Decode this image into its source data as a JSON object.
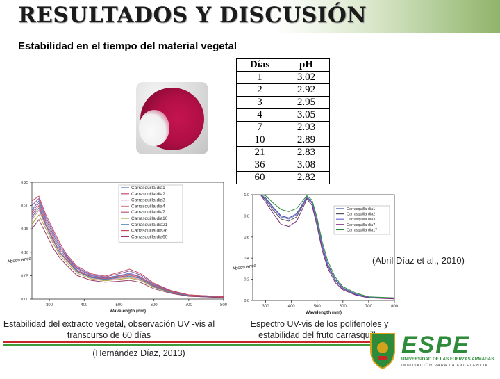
{
  "slide": {
    "title": "RESULTADOS Y DISCUSIÓN",
    "subtitle": "Estabilidad en el tiempo del material vegetal"
  },
  "table": {
    "headers": [
      "Días",
      "pH"
    ],
    "rows": [
      [
        "1",
        "3.02"
      ],
      [
        "2",
        "2.92"
      ],
      [
        "3",
        "2.95"
      ],
      [
        "4",
        "3.05"
      ],
      [
        "7",
        "2.93"
      ],
      [
        "10",
        "2.89"
      ],
      [
        "21",
        "2.83"
      ],
      [
        "36",
        "3.08"
      ],
      [
        "60",
        "2.82"
      ]
    ]
  },
  "captions": {
    "left": "Estabilidad del extracto vegetal, observación UV -vis al transcurso de 60 días",
    "left_citation": "(Hernández Díaz, 2013)",
    "right": "Espectro UV-vis de los polifenoles y estabilidad del fruto carrasquilla",
    "right_citation": "(Abril Díaz et al., 2010)"
  },
  "logo": {
    "brand": "ESPE",
    "line1": "UNIVERSIDAD DE LAS FUERZAS ARMADAS",
    "line2": "INNOVACIÓN PARA LA EXCELENCIA",
    "colors": {
      "green": "#2e8b3a",
      "gold": "#d7a21b"
    }
  },
  "chart_data": [
    {
      "type": "line",
      "x_range": [
        250,
        800
      ],
      "y_range": [
        0,
        0.25
      ],
      "xlabel": "Wavelength (nm)",
      "ylabel": "Absorbance",
      "x_ticks": [
        "300",
        "400",
        "500",
        "600",
        "700",
        "800"
      ],
      "y_ticks": [
        "0,00",
        "0,05",
        "0,10",
        "0,15",
        "0,20",
        "0,25"
      ],
      "legend_position": "top-right",
      "series": [
        {
          "name": "Carrasquilla dia1",
          "color": "#5b6abf",
          "x": [
            250,
            270,
            290,
            310,
            330,
            350,
            380,
            420,
            460,
            500,
            530,
            560,
            600,
            650,
            700,
            800
          ],
          "y": [
            0.19,
            0.21,
            0.17,
            0.14,
            0.11,
            0.09,
            0.065,
            0.05,
            0.045,
            0.05,
            0.055,
            0.048,
            0.03,
            0.016,
            0.008,
            0.004
          ]
        },
        {
          "name": "Carrasquilla dia2",
          "color": "#c0506b",
          "x": [
            250,
            270,
            290,
            310,
            330,
            350,
            380,
            420,
            460,
            500,
            530,
            560,
            600,
            650,
            700,
            800
          ],
          "y": [
            0.18,
            0.2,
            0.16,
            0.13,
            0.1,
            0.085,
            0.06,
            0.047,
            0.043,
            0.047,
            0.051,
            0.045,
            0.028,
            0.015,
            0.007,
            0.004
          ]
        },
        {
          "name": "Carrasquilla dia3",
          "color": "#8a57a8",
          "x": [
            250,
            270,
            290,
            310,
            330,
            350,
            380,
            420,
            460,
            500,
            530,
            560,
            600,
            650,
            700,
            800
          ],
          "y": [
            0.2,
            0.215,
            0.175,
            0.145,
            0.115,
            0.092,
            0.067,
            0.052,
            0.047,
            0.054,
            0.06,
            0.052,
            0.032,
            0.017,
            0.009,
            0.005
          ]
        },
        {
          "name": "Carrasquilla dia4",
          "color": "#d98aa0",
          "x": [
            250,
            270,
            290,
            310,
            330,
            350,
            380,
            420,
            460,
            500,
            530,
            560,
            600,
            650,
            700,
            800
          ],
          "y": [
            0.17,
            0.19,
            0.155,
            0.125,
            0.098,
            0.082,
            0.058,
            0.045,
            0.041,
            0.044,
            0.047,
            0.042,
            0.026,
            0.014,
            0.007,
            0.003
          ]
        },
        {
          "name": "Carrasquilla dia7",
          "color": "#b05c7a",
          "x": [
            250,
            270,
            290,
            310,
            330,
            350,
            380,
            420,
            460,
            500,
            530,
            560,
            600,
            650,
            700,
            800
          ],
          "y": [
            0.185,
            0.205,
            0.165,
            0.135,
            0.105,
            0.088,
            0.062,
            0.048,
            0.044,
            0.049,
            0.053,
            0.047,
            0.029,
            0.016,
            0.008,
            0.004
          ]
        },
        {
          "name": "Carrasquilla dia10",
          "color": "#a9a23c",
          "x": [
            250,
            270,
            290,
            310,
            330,
            350,
            380,
            420,
            460,
            500,
            530,
            560,
            600,
            650,
            700,
            800
          ],
          "y": [
            0.16,
            0.18,
            0.15,
            0.12,
            0.094,
            0.078,
            0.055,
            0.043,
            0.039,
            0.042,
            0.045,
            0.04,
            0.025,
            0.013,
            0.006,
            0.003
          ]
        },
        {
          "name": "Carrasquilla dia21",
          "color": "#4f7fb5",
          "x": [
            250,
            270,
            290,
            310,
            330,
            350,
            380,
            420,
            460,
            500,
            530,
            560,
            600,
            650,
            700,
            800
          ],
          "y": [
            0.175,
            0.195,
            0.158,
            0.128,
            0.1,
            0.083,
            0.059,
            0.046,
            0.042,
            0.046,
            0.049,
            0.044,
            0.027,
            0.014,
            0.007,
            0.003
          ]
        },
        {
          "name": "Carrasquilla dia36",
          "color": "#c94a5a",
          "x": [
            250,
            270,
            290,
            310,
            330,
            350,
            380,
            420,
            460,
            500,
            530,
            560,
            600,
            650,
            700,
            800
          ],
          "y": [
            0.21,
            0.22,
            0.18,
            0.15,
            0.12,
            0.095,
            0.07,
            0.054,
            0.049,
            0.057,
            0.064,
            0.055,
            0.034,
            0.018,
            0.009,
            0.005
          ]
        },
        {
          "name": "Carrasquilla dia60",
          "color": "#9a3a6a",
          "x": [
            250,
            270,
            290,
            310,
            330,
            350,
            380,
            420,
            460,
            500,
            530,
            560,
            600,
            650,
            700,
            800
          ],
          "y": [
            0.15,
            0.17,
            0.14,
            0.11,
            0.088,
            0.072,
            0.05,
            0.04,
            0.036,
            0.038,
            0.04,
            0.036,
            0.022,
            0.012,
            0.006,
            0.003
          ]
        }
      ]
    },
    {
      "type": "line",
      "x_range": [
        250,
        800
      ],
      "y_range": [
        0,
        1.0
      ],
      "xlabel": "Wavelength (nm)",
      "ylabel": "Absorbance",
      "x_ticks": [
        "300",
        "400",
        "500",
        "600",
        "700",
        "800"
      ],
      "y_ticks": [
        "0.0",
        "0.2",
        "0.4",
        "0.6",
        "0.8",
        "1.0"
      ],
      "legend_position": "top-right",
      "series": [
        {
          "name": "Carrasquilla dia1",
          "color": "#3b4fa8",
          "x": [
            280,
            300,
            330,
            360,
            390,
            420,
            440,
            460,
            480,
            500,
            520,
            540,
            570,
            600,
            650,
            700,
            800
          ],
          "y": [
            1.0,
            0.97,
            0.88,
            0.8,
            0.78,
            0.82,
            0.9,
            0.98,
            0.93,
            0.75,
            0.52,
            0.35,
            0.2,
            0.12,
            0.06,
            0.03,
            0.02
          ]
        },
        {
          "name": "Carrasquilla dia2",
          "color": "#555555",
          "x": [
            280,
            300,
            330,
            360,
            390,
            420,
            440,
            460,
            480,
            500,
            520,
            540,
            570,
            600,
            650,
            700,
            800
          ],
          "y": [
            1.0,
            0.95,
            0.85,
            0.77,
            0.75,
            0.79,
            0.88,
            0.97,
            0.92,
            0.73,
            0.5,
            0.33,
            0.19,
            0.11,
            0.055,
            0.028,
            0.018
          ]
        },
        {
          "name": "Carrasquilla dia3",
          "color": "#6a6ad0",
          "x": [
            280,
            300,
            330,
            360,
            390,
            420,
            440,
            460,
            480,
            500,
            520,
            540,
            570,
            600,
            650,
            700,
            800
          ],
          "y": [
            1.0,
            0.96,
            0.87,
            0.79,
            0.77,
            0.81,
            0.89,
            0.975,
            0.925,
            0.74,
            0.51,
            0.34,
            0.195,
            0.115,
            0.058,
            0.029,
            0.019
          ]
        },
        {
          "name": "Carrasquilla dia7",
          "color": "#7a2a7a",
          "x": [
            280,
            300,
            330,
            360,
            390,
            420,
            440,
            460,
            480,
            500,
            520,
            540,
            570,
            600,
            650,
            700,
            800
          ],
          "y": [
            1.0,
            0.93,
            0.82,
            0.72,
            0.7,
            0.75,
            0.85,
            0.96,
            0.9,
            0.7,
            0.47,
            0.31,
            0.17,
            0.1,
            0.05,
            0.025,
            0.015
          ]
        },
        {
          "name": "Carrasquilla dia17",
          "color": "#2e8b3a",
          "x": [
            280,
            300,
            330,
            360,
            390,
            420,
            440,
            460,
            480,
            500,
            520,
            540,
            570,
            600,
            650,
            700,
            800
          ],
          "y": [
            1.0,
            0.99,
            0.92,
            0.86,
            0.84,
            0.87,
            0.93,
            0.99,
            0.95,
            0.78,
            0.55,
            0.38,
            0.22,
            0.13,
            0.07,
            0.035,
            0.025
          ]
        }
      ]
    }
  ]
}
